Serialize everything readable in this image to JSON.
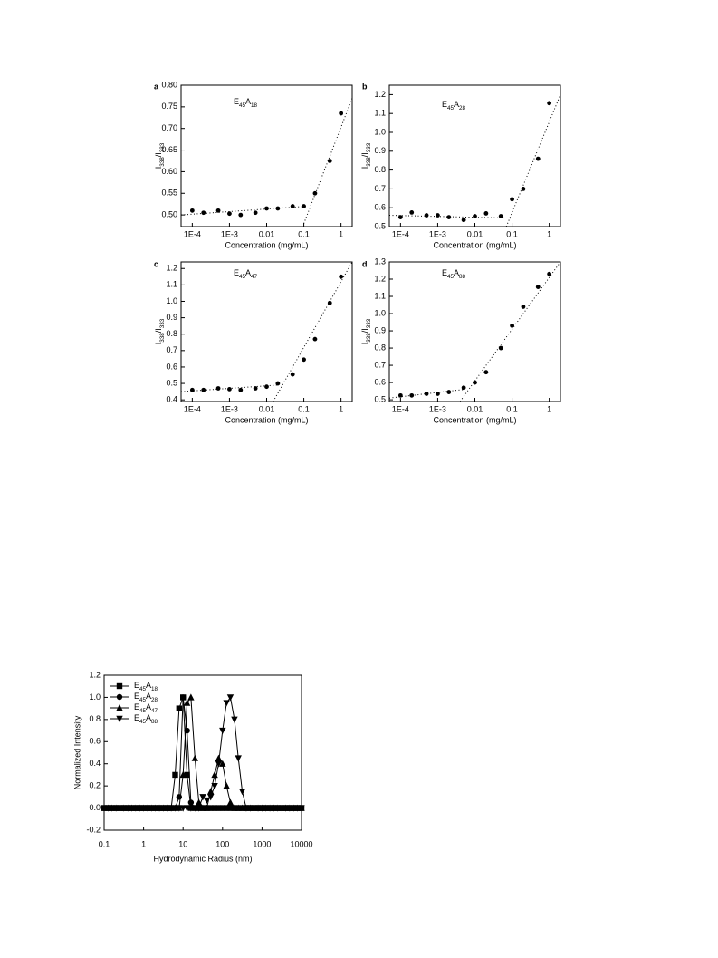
{
  "chart_data": [
    {
      "type": "scatter",
      "panel_label": "a",
      "annotation": "E45A18",
      "x_label": "Concentration (mg/mL)",
      "y_label": "I338/I333",
      "xscale": "log",
      "color": "#000000",
      "x": [
        0.0001,
        0.0002,
        0.0005,
        0.001,
        0.002,
        0.005,
        0.01,
        0.02,
        0.05,
        0.1,
        0.2,
        0.5,
        1
      ],
      "values": [
        0.51,
        0.505,
        0.51,
        0.503,
        0.5,
        0.505,
        0.515,
        0.515,
        0.52,
        0.52,
        0.55,
        0.625,
        0.735
      ],
      "fit_lines": [
        {
          "x": [
            5e-05,
            0.12
          ],
          "values": [
            0.5,
            0.52
          ]
        },
        {
          "x": [
            0.1,
            2
          ],
          "values": [
            0.48,
            0.77
          ]
        }
      ],
      "xlim": [
        5e-05,
        2
      ],
      "xticks": [
        {
          "value": 0.0001,
          "label": "1E-4"
        },
        {
          "value": 0.001,
          "label": "1E-3"
        },
        0.01,
        0.1,
        1
      ],
      "ylim": [
        0.473,
        0.8
      ],
      "yticks": [
        {
          "value": 0.5,
          "label": "0.50"
        },
        {
          "value": 0.55,
          "label": "0.55"
        },
        {
          "value": 0.6,
          "label": "0.60"
        },
        {
          "value": 0.65,
          "label": "0.65"
        },
        {
          "value": 0.7,
          "label": "0.70"
        },
        {
          "value": 0.75,
          "label": "0.75"
        },
        {
          "value": 0.8,
          "label": "0.80"
        }
      ]
    },
    {
      "type": "scatter",
      "panel_label": "b",
      "annotation": "E45A28",
      "x_label": "Concentration (mg/mL)",
      "y_label": "I338/I333",
      "xscale": "log",
      "color": "#000000",
      "x": [
        0.0001,
        0.0002,
        0.0005,
        0.001,
        0.002,
        0.005,
        0.01,
        0.02,
        0.05,
        0.1,
        0.2,
        0.5,
        1
      ],
      "values": [
        0.55,
        0.575,
        0.56,
        0.56,
        0.55,
        0.535,
        0.555,
        0.57,
        0.555,
        0.645,
        0.7,
        0.86,
        1.155
      ],
      "fit_lines": [
        {
          "x": [
            5e-05,
            0.1
          ],
          "values": [
            0.56,
            0.545
          ]
        },
        {
          "x": [
            0.07,
            2
          ],
          "values": [
            0.5,
            1.2
          ]
        }
      ],
      "xlim": [
        5e-05,
        2
      ],
      "xticks": [
        {
          "value": 0.0001,
          "label": "1E-4"
        },
        {
          "value": 0.001,
          "label": "1E-3"
        },
        0.01,
        0.1,
        1
      ],
      "ylim": [
        0.5,
        1.25
      ],
      "yticks": [
        0.5,
        0.6,
        0.7,
        0.8,
        0.9,
        {
          "value": 1,
          "label": "1.0"
        },
        1.1,
        1.2
      ]
    },
    {
      "type": "scatter",
      "panel_label": "c",
      "annotation": "E45A47",
      "x_label": "Concentration (mg/mL)",
      "y_label": "I338/I333",
      "xscale": "log",
      "color": "#000000",
      "x": [
        0.0001,
        0.0002,
        0.0005,
        0.001,
        0.002,
        0.005,
        0.01,
        0.02,
        0.05,
        0.1,
        0.2,
        0.5,
        1
      ],
      "values": [
        0.46,
        0.46,
        0.47,
        0.465,
        0.46,
        0.47,
        0.48,
        0.5,
        0.555,
        0.645,
        0.77,
        0.99,
        1.15
      ],
      "fit_lines": [
        {
          "x": [
            5e-05,
            0.02
          ],
          "values": [
            0.45,
            0.49
          ]
        },
        {
          "x": [
            0.015,
            2
          ],
          "values": [
            0.39,
            1.24
          ]
        }
      ],
      "xlim": [
        5e-05,
        2
      ],
      "xticks": [
        {
          "value": 0.0001,
          "label": "1E-4"
        },
        {
          "value": 0.001,
          "label": "1E-3"
        },
        0.01,
        0.1,
        1
      ],
      "ylim": [
        0.39,
        1.24
      ],
      "yticks": [
        0.4,
        0.5,
        0.6,
        0.7,
        0.8,
        0.9,
        {
          "value": 1,
          "label": "1.0"
        },
        1.1,
        1.2
      ]
    },
    {
      "type": "scatter",
      "panel_label": "d",
      "annotation": "E45A88",
      "x_label": "Concentration (mg/mL)",
      "y_label": "I338/I333",
      "xscale": "log",
      "color": "#000000",
      "x": [
        0.0001,
        0.0002,
        0.0005,
        0.001,
        0.002,
        0.005,
        0.01,
        0.02,
        0.05,
        0.1,
        0.2,
        0.5,
        1
      ],
      "values": [
        0.525,
        0.525,
        0.535,
        0.535,
        0.545,
        0.57,
        0.6,
        0.66,
        0.8,
        0.93,
        1.04,
        1.155,
        1.23
      ],
      "fit_lines": [
        {
          "x": [
            5e-05,
            0.005
          ],
          "values": [
            0.51,
            0.56
          ]
        },
        {
          "x": [
            0.004,
            2
          ],
          "values": [
            0.49,
            1.3
          ]
        }
      ],
      "xlim": [
        5e-05,
        2
      ],
      "xticks": [
        {
          "value": 0.0001,
          "label": "1E-4"
        },
        {
          "value": 0.001,
          "label": "1E-3"
        },
        0.01,
        0.1,
        1
      ],
      "ylim": [
        0.49,
        1.3
      ],
      "yticks": [
        0.5,
        0.6,
        0.7,
        0.8,
        0.9,
        {
          "value": 1,
          "label": "1.0"
        },
        1.1,
        1.2,
        1.3
      ]
    },
    {
      "type": "line",
      "x_label": "Hydrodynamic Radius (nm)",
      "y_label": "Normalized Intensity",
      "xscale": "log",
      "legend": "upper left",
      "x": [
        0.1,
        0.126,
        0.158,
        0.2,
        0.251,
        0.316,
        0.398,
        0.501,
        0.631,
        0.794,
        1,
        1.26,
        1.58,
        2,
        2.51,
        3.16,
        3.98,
        5.01,
        6.31,
        7.94,
        10,
        12.6,
        15.8,
        20,
        25.1,
        31.6,
        39.8,
        50.1,
        63.1,
        79.4,
        100,
        126,
        158,
        200,
        251,
        316,
        398,
        501,
        631,
        794,
        1000,
        1260,
        1580,
        2000,
        2510,
        3160,
        3980,
        5010,
        6310,
        7940,
        10000
      ],
      "series": [
        {
          "name": "E45A18",
          "color": "#000000",
          "marker": "square",
          "values": [
            0,
            0,
            0,
            0,
            0,
            0,
            0,
            0,
            0,
            0,
            0,
            0,
            0,
            0,
            0,
            0,
            0,
            0,
            0.3,
            0.9,
            1,
            0.3,
            0,
            0,
            0,
            0,
            0,
            0,
            0,
            0,
            0,
            0,
            0,
            0,
            0,
            0,
            0,
            0,
            0,
            0,
            0,
            0,
            0,
            0,
            0,
            0,
            0,
            0,
            0,
            0,
            0
          ]
        },
        {
          "name": "E45A28",
          "color": "#000000",
          "marker": "circle",
          "values": [
            0,
            0,
            0,
            0,
            0,
            0,
            0,
            0,
            0,
            0,
            0,
            0,
            0,
            0,
            0,
            0,
            0,
            0,
            0,
            0.1,
            1,
            0.7,
            0.05,
            0,
            0,
            0,
            0,
            0,
            0,
            0,
            0,
            0,
            0,
            0,
            0,
            0,
            0,
            0,
            0,
            0,
            0,
            0,
            0,
            0,
            0,
            0,
            0,
            0,
            0,
            0,
            0
          ]
        },
        {
          "name": "E45A47",
          "color": "#000000",
          "marker": "triangle-up",
          "values": [
            0,
            0,
            0,
            0,
            0,
            0,
            0,
            0,
            0,
            0,
            0,
            0,
            0,
            0,
            0,
            0,
            0,
            0,
            0,
            0,
            0.3,
            0.95,
            1,
            0.45,
            0.05,
            0,
            0,
            0.15,
            0.3,
            0.45,
            0.4,
            0.2,
            0.05,
            0,
            0,
            0,
            0,
            0,
            0,
            0,
            0,
            0,
            0,
            0,
            0,
            0,
            0,
            0,
            0,
            0,
            0
          ]
        },
        {
          "name": "E45A88",
          "color": "#000000",
          "marker": "triangle-down",
          "values": [
            0,
            0,
            0,
            0,
            0,
            0,
            0,
            0,
            0,
            0,
            0,
            0,
            0,
            0,
            0,
            0,
            0,
            0,
            0,
            0,
            0,
            0,
            0,
            0,
            0,
            0.1,
            0.07,
            0.1,
            0.2,
            0.4,
            0.7,
            0.95,
            1,
            0.8,
            0.45,
            0.15,
            0,
            0,
            0,
            0,
            0,
            0,
            0,
            0,
            0,
            0,
            0,
            0,
            0,
            0,
            0
          ]
        }
      ],
      "xlim": [
        0.1,
        10000
      ],
      "xticks": [
        0.1,
        1,
        10,
        100,
        1000,
        10000
      ],
      "ylim": [
        -0.2,
        1.2
      ],
      "yticks": [
        -0.2,
        {
          "value": 0,
          "label": "0.0"
        },
        0.2,
        0.4,
        0.6,
        0.8,
        {
          "value": 1,
          "label": "1.0"
        },
        1.2
      ]
    }
  ]
}
